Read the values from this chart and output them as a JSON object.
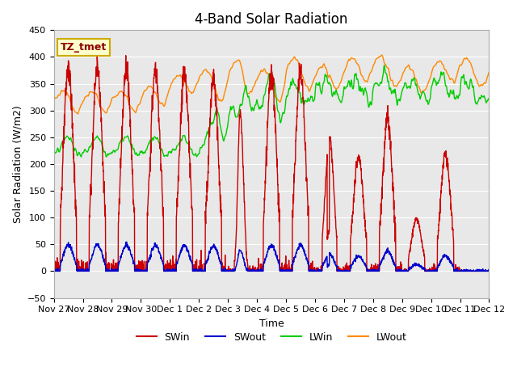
{
  "title": "4-Band Solar Radiation",
  "xlabel": "Time",
  "ylabel": "Solar Radiation (W/m2)",
  "ylim": [
    -50,
    450
  ],
  "background_color": "#e8e8e8",
  "legend_label": "TZ_tmet",
  "series": {
    "SWin": {
      "color": "#cc0000",
      "lw": 1.0
    },
    "SWout": {
      "color": "#0000cc",
      "lw": 1.0
    },
    "LWin": {
      "color": "#00cc00",
      "lw": 1.0
    },
    "LWout": {
      "color": "#ff8800",
      "lw": 1.0
    }
  },
  "xtick_labels": [
    "Nov 27",
    "Nov 28",
    "Nov 29",
    "Nov 30",
    "Dec 1",
    "Dec 2",
    "Dec 3",
    "Dec 4",
    "Dec 5",
    "Dec 6",
    "Dec 7",
    "Dec 8",
    "Dec 9",
    "Dec 10",
    "Dec 11",
    "Dec 12"
  ],
  "ytick_values": [
    -50,
    0,
    50,
    100,
    150,
    200,
    250,
    300,
    350,
    400,
    450
  ],
  "grid_color": "#ffffff",
  "n_days": 15,
  "pts_per_hour": 6
}
